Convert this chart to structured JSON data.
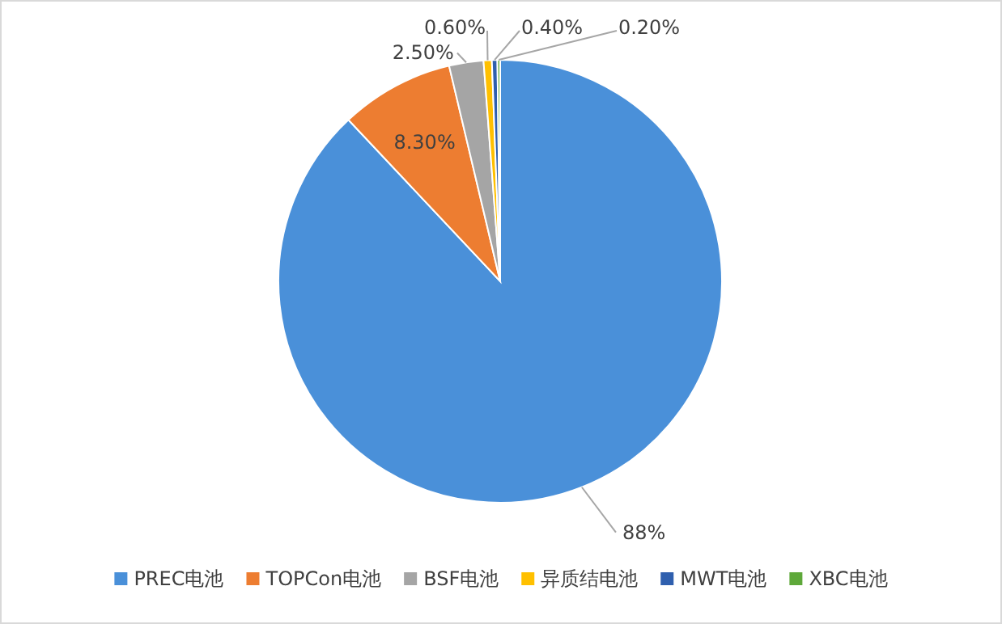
{
  "chart_data": {
    "type": "pie",
    "categories": [
      "PREC电池",
      "TOPCon电池",
      "BSF电池",
      "异质结电池",
      "MWT电池",
      "XBC电池"
    ],
    "values": [
      88,
      8.3,
      2.5,
      0.6,
      0.4,
      0.2
    ],
    "value_labels": [
      "88%",
      "8.30%",
      "2.50%",
      "0.60%",
      "0.40%",
      "0.20%"
    ],
    "colors": [
      "#4a90d9",
      "#ed7d31",
      "#a5a5a5",
      "#ffc000",
      "#2f5fae",
      "#5ea83a"
    ],
    "legend": "bottom"
  }
}
